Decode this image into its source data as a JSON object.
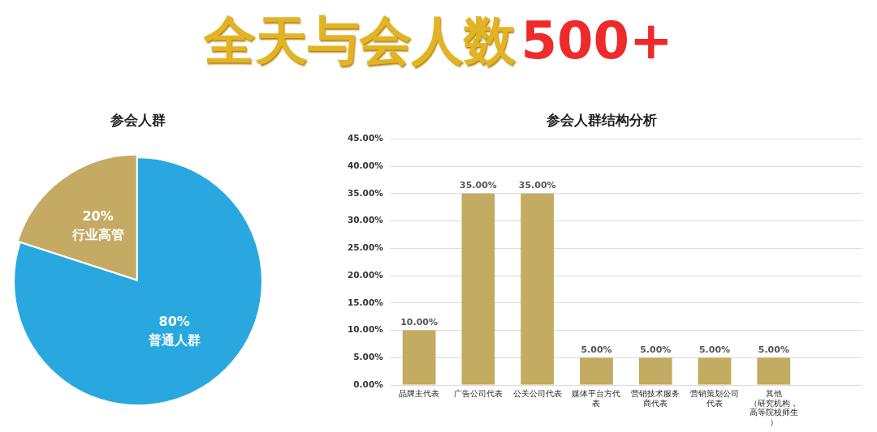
{
  "chart_data": [
    {
      "type": "other",
      "title": "全天与会人数",
      "annotations": [
        "500+"
      ]
    },
    {
      "type": "pie",
      "title": "参会人群",
      "categories": [
        "普通人群",
        "行业高管"
      ],
      "values": [
        80,
        20
      ],
      "colors": [
        "#29a8e0",
        "#c4aa62"
      ],
      "value_labels": [
        "80%",
        "20%"
      ],
      "legend": false
    },
    {
      "type": "bar",
      "title": "参会人群结构分析",
      "categories": [
        "品牌主代表",
        "广告公司代表",
        "公关公司代表",
        "媒体平台方代表",
        "营销技术服务商代表",
        "营销策划公司代表",
        "其他（研究机构，高等院校师生）",
        null
      ],
      "values": [
        10,
        35,
        35,
        5,
        5,
        5,
        5,
        null
      ],
      "color": "#c4ab62",
      "value_labels": [
        "10.00%",
        "35.00%",
        "35.00%",
        "5.00%",
        "5.00%",
        "5.00%",
        "5.00%",
        null
      ],
      "ylim": [
        0,
        45
      ],
      "yticks": [
        {
          "value": 0,
          "label": "0.00%"
        },
        {
          "value": 5,
          "label": "5.00%"
        },
        {
          "value": 10,
          "label": "10.00%"
        },
        {
          "value": 15,
          "label": "15.00%"
        },
        {
          "value": 20,
          "label": "20.00%"
        },
        {
          "value": 25,
          "label": "25.00%"
        },
        {
          "value": 30,
          "label": "30.00%"
        },
        {
          "value": 35,
          "label": "35.00%"
        },
        {
          "value": 40,
          "label": "40.00%"
        },
        {
          "value": 45,
          "label": "45.00%"
        }
      ],
      "grid": "y",
      "legend": false
    }
  ]
}
